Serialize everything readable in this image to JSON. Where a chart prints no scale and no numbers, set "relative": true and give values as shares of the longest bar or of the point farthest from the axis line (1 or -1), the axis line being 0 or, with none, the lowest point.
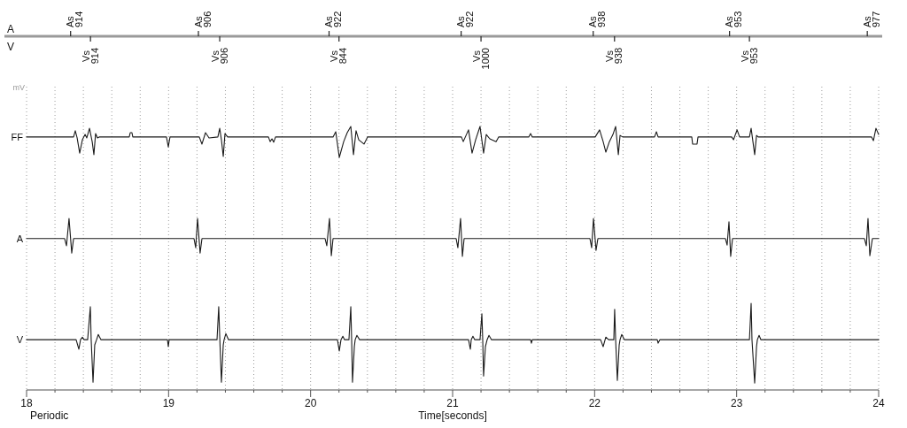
{
  "chart_data": [
    {
      "type": "line",
      "relative": true,
      "ylabel": "mV",
      "xlim": [
        18,
        24
      ],
      "tick_labels": false,
      "grid": "x",
      "xticks": [
        18,
        {
          "value": 18.2,
          "label": null
        },
        {
          "value": 18.4,
          "label": null
        },
        {
          "value": 18.6,
          "label": null
        },
        {
          "value": 18.8,
          "label": null
        },
        19,
        {
          "value": 19.2,
          "label": null
        },
        {
          "value": 19.4,
          "label": null
        },
        {
          "value": 19.6,
          "label": null
        },
        {
          "value": 19.8,
          "label": null
        },
        20,
        {
          "value": 20.2,
          "label": null
        },
        {
          "value": 20.4,
          "label": null
        },
        {
          "value": 20.6,
          "label": null
        },
        {
          "value": 20.8,
          "label": null
        },
        21,
        {
          "value": 21.2,
          "label": null
        },
        {
          "value": 21.4,
          "label": null
        },
        {
          "value": 21.6,
          "label": null
        },
        {
          "value": 21.8,
          "label": null
        },
        22,
        {
          "value": 22.2,
          "label": null
        },
        {
          "value": 22.4,
          "label": null
        },
        {
          "value": 22.6,
          "label": null
        },
        {
          "value": 22.8,
          "label": null
        },
        23,
        {
          "value": 23.2,
          "label": null
        },
        {
          "value": 23.4,
          "label": null
        },
        {
          "value": 23.6,
          "label": null
        },
        {
          "value": 23.8,
          "label": null
        },
        24
      ],
      "series": [
        {
          "name": "FF",
          "color": "#1a1a1a",
          "x": [
            18.0,
            18.331,
            18.343,
            18.356,
            18.374,
            18.393,
            18.412,
            18.424,
            18.443,
            18.462,
            18.474,
            18.486,
            18.499,
            18.511,
            18.723,
            18.73,
            18.742,
            18.748,
            18.985,
            18.998,
            19.01,
            19.216,
            19.235,
            19.26,
            19.285,
            19.347,
            19.36,
            19.372,
            19.385,
            19.397,
            19.416,
            19.703,
            19.715,
            19.728,
            19.74,
            19.753,
            20.158,
            20.177,
            20.202,
            20.233,
            20.258,
            20.283,
            20.302,
            20.32,
            20.339,
            20.376,
            20.401,
            21.062,
            21.075,
            21.112,
            21.137,
            21.162,
            21.193,
            21.218,
            21.237,
            21.262,
            21.306,
            21.324,
            21.536,
            21.549,
            21.561,
            22.004,
            22.035,
            22.06,
            22.079,
            22.104,
            22.129,
            22.148,
            22.167,
            22.179,
            22.197,
            22.422,
            22.435,
            22.447,
            22.684,
            22.69,
            22.721,
            22.728,
            22.965,
            22.978,
            23.003,
            23.021,
            23.09,
            23.102,
            23.127,
            23.14,
            23.152,
            23.95,
            23.963,
            23.981,
            24.0
          ],
          "values": [
            0.66,
            0.66,
            0.86,
            0.63,
            0.14,
            0.57,
            0.74,
            0.63,
            0.94,
            0.51,
            0.09,
            0.77,
            0.63,
            0.66,
            0.66,
            0.8,
            0.8,
            0.66,
            0.66,
            0.34,
            0.66,
            0.66,
            0.43,
            0.8,
            0.63,
            0.66,
            0.94,
            0.57,
            0.03,
            0.77,
            0.66,
            0.66,
            0.51,
            0.6,
            0.49,
            0.66,
            0.66,
            0.83,
            0,
            0.51,
            0.8,
            1,
            0.09,
            0.86,
            0.57,
            0.43,
            0.66,
            0.66,
            0.51,
            0.89,
            0.14,
            0.57,
            1,
            0.14,
            0.74,
            0.6,
            0.51,
            0.66,
            0.66,
            0.77,
            0.66,
            0.66,
            0.89,
            0.51,
            0.17,
            0.51,
            0.74,
            1,
            0.09,
            0.71,
            0.66,
            0.66,
            0.83,
            0.66,
            0.66,
            0.43,
            0.43,
            0.66,
            0.66,
            0.57,
            0.89,
            0.66,
            0.66,
            0.94,
            0.09,
            0.71,
            0.66,
            0.66,
            0.54,
            0.94,
            0.74
          ]
        }
      ]
    },
    {
      "type": "line",
      "relative": true,
      "annotations": [
        {
          "text": "As 914",
          "x": 18.31
        },
        {
          "text": "As 906",
          "x": 19.21
        },
        {
          "text": "As 922",
          "x": 20.13
        },
        {
          "text": "As 922",
          "x": 21.06
        },
        {
          "text": "As 938",
          "x": 21.99
        },
        {
          "text": "As 953",
          "x": 22.95
        },
        {
          "text": "As 977",
          "x": 23.92
        }
      ],
      "xlim": [
        18,
        24
      ],
      "tick_labels": false,
      "grid": "x",
      "xticks": [
        18,
        {
          "value": 18.2,
          "label": null
        },
        {
          "value": 18.4,
          "label": null
        },
        {
          "value": 18.6,
          "label": null
        },
        {
          "value": 18.8,
          "label": null
        },
        19,
        {
          "value": 19.2,
          "label": null
        },
        {
          "value": 19.4,
          "label": null
        },
        {
          "value": 19.6,
          "label": null
        },
        {
          "value": 19.8,
          "label": null
        },
        20,
        {
          "value": 20.2,
          "label": null
        },
        {
          "value": 20.4,
          "label": null
        },
        {
          "value": 20.6,
          "label": null
        },
        {
          "value": 20.8,
          "label": null
        },
        21,
        {
          "value": 21.2,
          "label": null
        },
        {
          "value": 21.4,
          "label": null
        },
        {
          "value": 21.6,
          "label": null
        },
        {
          "value": 21.8,
          "label": null
        },
        22,
        {
          "value": 22.2,
          "label": null
        },
        {
          "value": 22.4,
          "label": null
        },
        {
          "value": 22.6,
          "label": null
        },
        {
          "value": 22.8,
          "label": null
        },
        23,
        {
          "value": 23.2,
          "label": null
        },
        {
          "value": 23.4,
          "label": null
        },
        {
          "value": 23.6,
          "label": null
        },
        {
          "value": 23.8,
          "label": null
        },
        24
      ],
      "series": [
        {
          "name": "A",
          "color": "#1a1a1a",
          "x": [
            18.0,
            18.268,
            18.281,
            18.299,
            18.318,
            18.331,
            19.179,
            19.191,
            19.204,
            19.222,
            19.235,
            20.102,
            20.114,
            20.133,
            20.146,
            20.158,
            21.025,
            21.037,
            21.056,
            21.069,
            21.081,
            21.967,
            21.979,
            21.992,
            22.01,
            22.023,
            22.921,
            22.933,
            22.946,
            22.958,
            22.971,
            23.9,
            23.913,
            23.925,
            23.938,
            23.956,
            24.0
          ],
          "values": [
            0.47,
            0.47,
            0.28,
            1,
            0.09,
            0.47,
            0.47,
            0.23,
            1,
            0.09,
            0.47,
            0.47,
            0.28,
            1,
            0.02,
            0.47,
            0.47,
            0.23,
            1,
            0,
            0.47,
            0.47,
            0.23,
            1,
            0.16,
            0.47,
            0.47,
            0.3,
            0.91,
            0,
            0.47,
            0.47,
            0.28,
            1,
            0.02,
            0.47,
            0.47
          ]
        }
      ]
    },
    {
      "type": "line",
      "relative": true,
      "xlabel": "Time[seconds]",
      "annotations": [
        "Periodic",
        {
          "text": "Vs 914",
          "x": 18.45
        },
        {
          "text": "Vs 906",
          "x": 19.36
        },
        {
          "text": "Vs 844",
          "x": 20.2
        },
        {
          "text": "Vs 1000",
          "x": 21.2
        },
        {
          "text": "Vs 938",
          "x": 22.14
        },
        {
          "text": "Vs 953",
          "x": 23.09
        }
      ],
      "xlim": [
        18,
        24
      ],
      "tick_labels": "x",
      "grid": "x",
      "xticks": [
        18,
        {
          "value": 18.2,
          "label": null
        },
        {
          "value": 18.4,
          "label": null
        },
        {
          "value": 18.6,
          "label": null
        },
        {
          "value": 18.8,
          "label": null
        },
        19,
        {
          "value": 19.2,
          "label": null
        },
        {
          "value": 19.4,
          "label": null
        },
        {
          "value": 19.6,
          "label": null
        },
        {
          "value": 19.8,
          "label": null
        },
        20,
        {
          "value": 20.2,
          "label": null
        },
        {
          "value": 20.4,
          "label": null
        },
        {
          "value": 20.6,
          "label": null
        },
        {
          "value": 20.8,
          "label": null
        },
        21,
        {
          "value": 21.2,
          "label": null
        },
        {
          "value": 21.4,
          "label": null
        },
        {
          "value": 21.6,
          "label": null
        },
        {
          "value": 21.8,
          "label": null
        },
        22,
        {
          "value": 22.2,
          "label": null
        },
        {
          "value": 22.4,
          "label": null
        },
        {
          "value": 22.6,
          "label": null
        },
        {
          "value": 22.8,
          "label": null
        },
        23,
        {
          "value": 23.2,
          "label": null
        },
        {
          "value": 23.4,
          "label": null
        },
        {
          "value": 23.6,
          "label": null
        },
        {
          "value": 23.8,
          "label": null
        },
        24
      ],
      "series": [
        {
          "name": "V",
          "color": "#1a1a1a",
          "x": [
            18.0,
            18.349,
            18.368,
            18.38,
            18.393,
            18.405,
            18.43,
            18.449,
            18.455,
            18.468,
            18.48,
            18.493,
            18.505,
            18.524,
            18.992,
            18.998,
            19.004,
            19.341,
            19.353,
            19.36,
            19.372,
            19.385,
            19.391,
            19.403,
            19.422,
            20.189,
            20.202,
            20.214,
            20.227,
            20.239,
            20.27,
            20.283,
            20.289,
            20.295,
            20.308,
            20.314,
            20.326,
            20.345,
            21.112,
            21.125,
            21.131,
            21.143,
            21.156,
            21.193,
            21.206,
            21.212,
            21.218,
            21.231,
            21.243,
            21.256,
            21.274,
            21.549,
            21.555,
            21.561,
            22.042,
            22.06,
            22.079,
            22.098,
            22.135,
            22.141,
            22.148,
            22.16,
            22.173,
            22.179,
            22.191,
            22.21,
            22.441,
            22.447,
            22.459,
            23.09,
            23.102,
            23.108,
            23.127,
            23.14,
            23.146,
            23.158,
            23.171,
            24.0
          ],
          "values": [
            0.58,
            0.58,
            0.47,
            0.58,
            0.61,
            0.58,
            0.58,
            0.96,
            0.58,
            0.09,
            0.52,
            0.58,
            0.64,
            0.58,
            0.58,
            0.5,
            0.58,
            0.58,
            0.96,
            0.62,
            0.09,
            0.52,
            0.58,
            0.65,
            0.58,
            0.58,
            0.45,
            0.58,
            0.62,
            0.58,
            0.58,
            0.96,
            0.58,
            0.09,
            0.5,
            0.58,
            0.63,
            0.58,
            0.58,
            0.47,
            0.58,
            0.62,
            0.58,
            0.58,
            0.88,
            0.58,
            0.16,
            0.5,
            0.58,
            0.63,
            0.58,
            0.58,
            0.54,
            0.58,
            0.58,
            0.5,
            0.61,
            0.58,
            0.58,
            0.93,
            0.58,
            0.11,
            0.52,
            0.58,
            0.64,
            0.58,
            0.58,
            0.54,
            0.58,
            0.58,
            1,
            0.58,
            0.08,
            0.5,
            0.58,
            0.63,
            0.58,
            0.58
          ]
        }
      ]
    }
  ]
}
